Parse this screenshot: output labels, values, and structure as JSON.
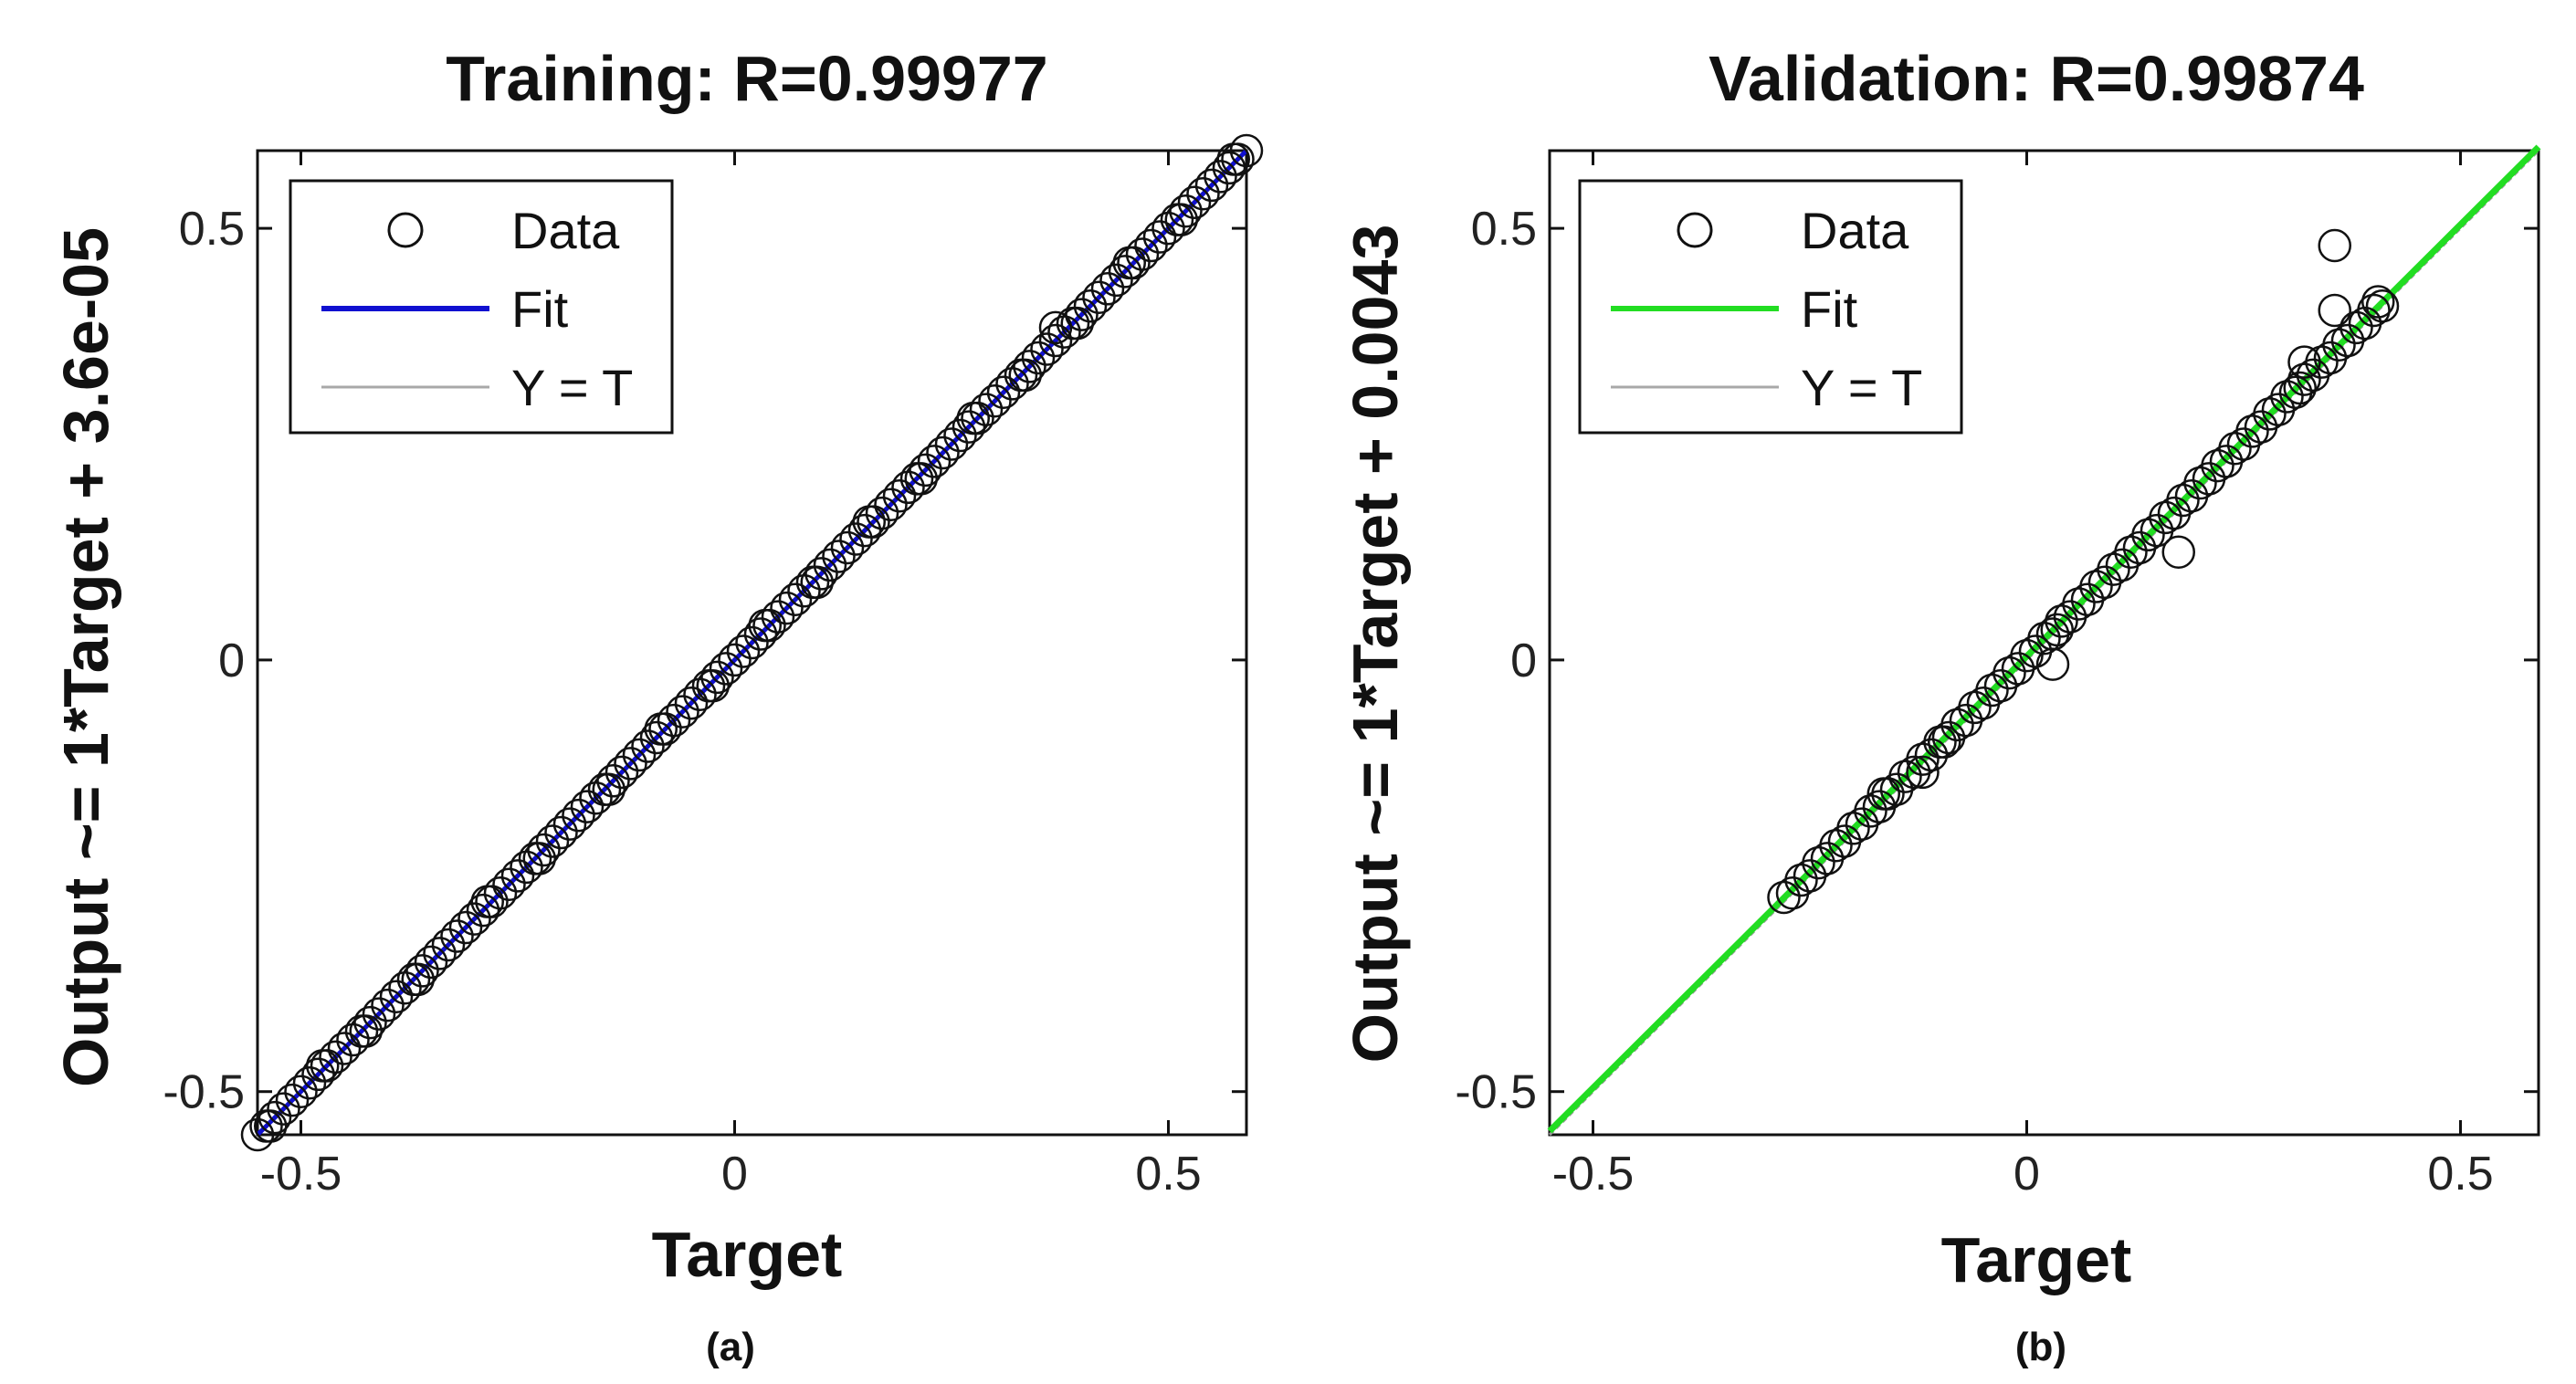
{
  "chart_data": [
    {
      "type": "scatter",
      "panel": "a",
      "title": "Training: R=0.99977",
      "xlabel": "Target",
      "ylabel": "Output ~= 1*Target + 3.6e-05",
      "caption": "(a)",
      "xlim": [
        -0.55,
        0.59
      ],
      "ylim": [
        -0.55,
        0.59
      ],
      "xticks": [
        -0.5,
        0,
        0.5
      ],
      "xtick_labels": [
        "-0.5",
        "0",
        "0.5"
      ],
      "yticks": [
        -0.5,
        0,
        0.5
      ],
      "ytick_labels": [
        "-0.5",
        "0",
        "0.5"
      ],
      "fit": {
        "slope": 1,
        "intercept": 3.6e-05,
        "x_range": [
          -0.55,
          0.59
        ],
        "color": "#1010d0"
      },
      "legend": {
        "position": "top-left",
        "entries": [
          "Data",
          "Fit",
          "Y = T"
        ]
      },
      "series": [
        {
          "name": "Data",
          "marker": "circle",
          "points": [
            [
              -0.55,
              -0.55
            ],
            [
              -0.54,
              -0.54
            ],
            [
              -0.53,
              -0.53
            ],
            [
              -0.52,
              -0.52
            ],
            [
              -0.51,
              -0.51
            ],
            [
              -0.5,
              -0.5
            ],
            [
              -0.49,
              -0.49
            ],
            [
              -0.48,
              -0.48
            ],
            [
              -0.47,
              -0.47
            ],
            [
              -0.46,
              -0.46
            ],
            [
              -0.45,
              -0.45
            ],
            [
              -0.44,
              -0.44
            ],
            [
              -0.43,
              -0.43
            ],
            [
              -0.42,
              -0.42
            ],
            [
              -0.41,
              -0.41
            ],
            [
              -0.4,
              -0.4
            ],
            [
              -0.39,
              -0.39
            ],
            [
              -0.38,
              -0.38
            ],
            [
              -0.37,
              -0.37
            ],
            [
              -0.36,
              -0.36
            ],
            [
              -0.35,
              -0.35
            ],
            [
              -0.34,
              -0.34
            ],
            [
              -0.33,
              -0.33
            ],
            [
              -0.32,
              -0.32
            ],
            [
              -0.31,
              -0.31
            ],
            [
              -0.3,
              -0.3
            ],
            [
              -0.29,
              -0.29
            ],
            [
              -0.28,
              -0.28
            ],
            [
              -0.27,
              -0.27
            ],
            [
              -0.26,
              -0.26
            ],
            [
              -0.25,
              -0.25
            ],
            [
              -0.24,
              -0.24
            ],
            [
              -0.23,
              -0.23
            ],
            [
              -0.22,
              -0.22
            ],
            [
              -0.21,
              -0.21
            ],
            [
              -0.2,
              -0.2
            ],
            [
              -0.19,
              -0.19
            ],
            [
              -0.18,
              -0.18
            ],
            [
              -0.17,
              -0.17
            ],
            [
              -0.16,
              -0.16
            ],
            [
              -0.15,
              -0.15
            ],
            [
              -0.14,
              -0.14
            ],
            [
              -0.13,
              -0.13
            ],
            [
              -0.12,
              -0.12
            ],
            [
              -0.11,
              -0.11
            ],
            [
              -0.1,
              -0.1
            ],
            [
              -0.09,
              -0.09
            ],
            [
              -0.08,
              -0.08
            ],
            [
              -0.07,
              -0.07
            ],
            [
              -0.06,
              -0.06
            ],
            [
              -0.05,
              -0.05
            ],
            [
              -0.04,
              -0.04
            ],
            [
              -0.03,
              -0.03
            ],
            [
              -0.02,
              -0.02
            ],
            [
              -0.01,
              -0.01
            ],
            [
              0.0,
              0.0
            ],
            [
              0.01,
              0.01
            ],
            [
              0.02,
              0.02
            ],
            [
              0.03,
              0.03
            ],
            [
              0.04,
              0.04
            ],
            [
              0.05,
              0.05
            ],
            [
              0.06,
              0.06
            ],
            [
              0.07,
              0.07
            ],
            [
              0.08,
              0.08
            ],
            [
              0.09,
              0.09
            ],
            [
              0.1,
              0.1
            ],
            [
              0.11,
              0.11
            ],
            [
              0.12,
              0.12
            ],
            [
              0.13,
              0.13
            ],
            [
              0.14,
              0.14
            ],
            [
              0.15,
              0.15
            ],
            [
              0.16,
              0.16
            ],
            [
              0.17,
              0.17
            ],
            [
              0.18,
              0.18
            ],
            [
              0.19,
              0.19
            ],
            [
              0.2,
              0.2
            ],
            [
              0.21,
              0.21
            ],
            [
              0.22,
              0.22
            ],
            [
              0.23,
              0.23
            ],
            [
              0.24,
              0.24
            ],
            [
              0.25,
              0.25
            ],
            [
              0.26,
              0.26
            ],
            [
              0.27,
              0.27
            ],
            [
              0.28,
              0.28
            ],
            [
              0.29,
              0.29
            ],
            [
              0.3,
              0.3
            ],
            [
              0.31,
              0.31
            ],
            [
              0.32,
              0.32
            ],
            [
              0.33,
              0.33
            ],
            [
              0.34,
              0.34
            ],
            [
              0.35,
              0.35
            ],
            [
              0.36,
              0.36
            ],
            [
              0.37,
              0.37
            ],
            [
              0.38,
              0.38
            ],
            [
              0.39,
              0.39
            ],
            [
              0.4,
              0.4
            ],
            [
              0.41,
              0.41
            ],
            [
              0.42,
              0.42
            ],
            [
              0.43,
              0.43
            ],
            [
              0.44,
              0.44
            ],
            [
              0.45,
              0.45
            ],
            [
              0.46,
              0.46
            ],
            [
              0.47,
              0.47
            ],
            [
              0.48,
              0.48
            ],
            [
              0.49,
              0.49
            ],
            [
              0.5,
              0.5
            ],
            [
              0.51,
              0.51
            ],
            [
              0.52,
              0.52
            ],
            [
              0.53,
              0.53
            ],
            [
              0.54,
              0.54
            ],
            [
              0.55,
              0.55
            ],
            [
              0.56,
              0.56
            ],
            [
              0.57,
              0.57
            ],
            [
              0.58,
              0.58
            ],
            [
              0.59,
              0.59
            ],
            [
              -0.535,
              -0.54
            ],
            [
              -0.475,
              -0.47
            ],
            [
              -0.425,
              -0.43
            ],
            [
              -0.365,
              -0.37
            ],
            [
              -0.285,
              -0.28
            ],
            [
              -0.225,
              -0.23
            ],
            [
              -0.145,
              -0.15
            ],
            [
              -0.085,
              -0.08
            ],
            [
              -0.025,
              -0.03
            ],
            [
              0.035,
              0.04
            ],
            [
              0.095,
              0.09
            ],
            [
              0.155,
              0.16
            ],
            [
              0.215,
              0.21
            ],
            [
              0.275,
              0.28
            ],
            [
              0.335,
              0.33
            ],
            [
              0.37,
              0.385
            ],
            [
              0.395,
              0.39
            ],
            [
              0.455,
              0.46
            ],
            [
              0.515,
              0.51
            ],
            [
              0.575,
              0.58
            ]
          ]
        }
      ]
    },
    {
      "type": "scatter",
      "panel": "b",
      "title": "Validation: R=0.99874",
      "xlabel": "Target",
      "ylabel": "Output ~= 1*Target + 0.0043",
      "caption": "(b)",
      "xlim": [
        -0.55,
        0.59
      ],
      "ylim": [
        -0.55,
        0.59
      ],
      "xticks": [
        -0.5,
        0,
        0.5
      ],
      "xtick_labels": [
        "-0.5",
        "0",
        "0.5"
      ],
      "yticks": [
        -0.5,
        0,
        0.5
      ],
      "ytick_labels": [
        "-0.5",
        "0",
        "0.5"
      ],
      "fit": {
        "slope": 1,
        "intercept": 0.0043,
        "x_range": [
          -0.55,
          0.59
        ],
        "color": "#22dd22"
      },
      "legend": {
        "position": "top-left",
        "entries": [
          "Data",
          "Fit",
          "Y = T"
        ]
      },
      "series": [
        {
          "name": "Data",
          "marker": "circle",
          "points": [
            [
              -0.28,
              -0.275
            ],
            [
              -0.27,
              -0.27
            ],
            [
              -0.26,
              -0.255
            ],
            [
              -0.25,
              -0.25
            ],
            [
              -0.24,
              -0.235
            ],
            [
              -0.23,
              -0.23
            ],
            [
              -0.22,
              -0.215
            ],
            [
              -0.21,
              -0.21
            ],
            [
              -0.2,
              -0.195
            ],
            [
              -0.19,
              -0.19
            ],
            [
              -0.18,
              -0.175
            ],
            [
              -0.17,
              -0.17
            ],
            [
              -0.16,
              -0.155
            ],
            [
              -0.15,
              -0.15
            ],
            [
              -0.14,
              -0.135
            ],
            [
              -0.13,
              -0.13
            ],
            [
              -0.12,
              -0.115
            ],
            [
              -0.11,
              -0.11
            ],
            [
              -0.1,
              -0.095
            ],
            [
              -0.09,
              -0.09
            ],
            [
              -0.08,
              -0.075
            ],
            [
              -0.07,
              -0.07
            ],
            [
              -0.06,
              -0.055
            ],
            [
              -0.05,
              -0.05
            ],
            [
              -0.04,
              -0.035
            ],
            [
              -0.03,
              -0.03
            ],
            [
              -0.02,
              -0.015
            ],
            [
              -0.01,
              -0.01
            ],
            [
              0.0,
              0.005
            ],
            [
              0.01,
              0.01
            ],
            [
              0.02,
              0.025
            ],
            [
              0.03,
              0.03
            ],
            [
              0.04,
              0.045
            ],
            [
              0.05,
              0.05
            ],
            [
              0.06,
              0.065
            ],
            [
              0.07,
              0.07
            ],
            [
              0.08,
              0.085
            ],
            [
              0.09,
              0.09
            ],
            [
              0.1,
              0.105
            ],
            [
              0.11,
              0.11
            ],
            [
              0.12,
              0.125
            ],
            [
              0.13,
              0.13
            ],
            [
              0.14,
              0.145
            ],
            [
              0.15,
              0.15
            ],
            [
              0.16,
              0.165
            ],
            [
              0.17,
              0.17
            ],
            [
              0.18,
              0.185
            ],
            [
              0.19,
              0.19
            ],
            [
              0.2,
              0.205
            ],
            [
              0.21,
              0.21
            ],
            [
              0.22,
              0.225
            ],
            [
              0.23,
              0.23
            ],
            [
              0.24,
              0.245
            ],
            [
              0.25,
              0.25
            ],
            [
              0.26,
              0.265
            ],
            [
              0.27,
              0.27
            ],
            [
              0.28,
              0.285
            ],
            [
              0.29,
              0.29
            ],
            [
              0.3,
              0.305
            ],
            [
              0.31,
              0.31
            ],
            [
              0.32,
              0.325
            ],
            [
              0.33,
              0.33
            ],
            [
              0.34,
              0.345
            ],
            [
              0.35,
              0.35
            ],
            [
              0.36,
              0.365
            ],
            [
              0.37,
              0.37
            ],
            [
              0.38,
              0.385
            ],
            [
              0.39,
              0.39
            ],
            [
              0.4,
              0.405
            ],
            [
              0.41,
              0.41
            ],
            [
              -0.165,
              -0.155
            ],
            [
              -0.12,
              -0.13
            ],
            [
              -0.095,
              -0.095
            ],
            [
              0.035,
              0.035
            ],
            [
              0.03,
              -0.005
            ],
            [
              0.175,
              0.125
            ],
            [
              0.355,
              0.48
            ],
            [
              0.355,
              0.405
            ],
            [
              0.32,
              0.345
            ],
            [
              0.315,
              0.315
            ],
            [
              0.405,
              0.415
            ]
          ]
        }
      ]
    }
  ]
}
